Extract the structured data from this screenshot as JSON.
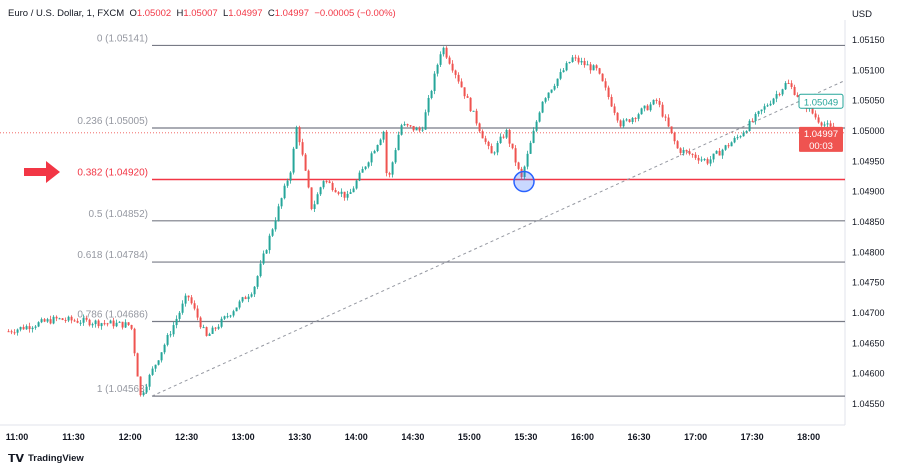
{
  "header": {
    "symbol": "Euro / U.S. Dollar, 1, FXCM",
    "o_label": "O",
    "o": "1.05002",
    "h_label": "H",
    "h": "1.05007",
    "l_label": "L",
    "l": "1.04997",
    "c_label": "C",
    "c": "1.04997",
    "change": "−0.00005 (−0.00%)"
  },
  "currency": "USD",
  "brand": "TradingView",
  "colors": {
    "up": "#26a69a",
    "down": "#ef5350",
    "fib_line": "#787b86",
    "fib_highlight": "#f23645",
    "arrow": "#f23645",
    "circle": "#2962ff"
  },
  "fib_levels": [
    {
      "ratio": 0,
      "price": 1.05141,
      "label": "0 (1.05141)"
    },
    {
      "ratio": 0.236,
      "price": 1.05005,
      "label": "0.236 (1.05005)"
    },
    {
      "ratio": 0.382,
      "price": 1.0492,
      "label": "0.382 (1.04920)",
      "highlight": true
    },
    {
      "ratio": 0.5,
      "price": 1.04852,
      "label": "0.5 (1.04852)"
    },
    {
      "ratio": 0.618,
      "price": 1.04784,
      "label": "0.618 (1.04784)"
    },
    {
      "ratio": 0.786,
      "price": 1.04686,
      "label": "0.786 (1.04686)"
    },
    {
      "ratio": 1,
      "price": 1.04563,
      "label": "1 (1.04563)"
    }
  ],
  "price_labels": {
    "high_marker": "1.05049",
    "last": "1.04997",
    "countdown": "00:03"
  },
  "chart_data": {
    "type": "candlestick",
    "yticks": [
      "1.05150",
      "1.05100",
      "1.05050",
      "1.05000",
      "1.04950",
      "1.04900",
      "1.04850",
      "1.04800",
      "1.04750",
      "1.04700",
      "1.04650",
      "1.04600",
      "1.04550"
    ],
    "xticks": [
      "11:00",
      "11:30",
      "12:00",
      "12:30",
      "13:00",
      "13:30",
      "14:00",
      "14:30",
      "15:00",
      "15:30",
      "16:00",
      "16:30",
      "17:00",
      "17:30",
      "18:00"
    ],
    "ylim": [
      1.0453,
      1.0518
    ],
    "approx_close": [
      [
        "10:55",
        1.0467
      ],
      [
        "11:20",
        1.0469
      ],
      [
        "12:00",
        1.0468
      ],
      [
        "12:05",
        1.04563
      ],
      [
        "12:30",
        1.0473
      ],
      [
        "12:40",
        1.0466
      ],
      [
        "13:05",
        1.0474
      ],
      [
        "13:25",
        1.0494
      ],
      [
        "13:28",
        1.0501
      ],
      [
        "13:36",
        1.0487
      ],
      [
        "13:42",
        1.0492
      ],
      [
        "13:55",
        1.0489
      ],
      [
        "14:14",
        1.05
      ],
      [
        "14:16",
        1.0491
      ],
      [
        "14:23",
        1.0501
      ],
      [
        "14:34",
        1.05
      ],
      [
        "14:45",
        1.05141
      ],
      [
        "14:53",
        1.0509
      ],
      [
        "15:11",
        1.0496
      ],
      [
        "15:19",
        1.05
      ],
      [
        "15:27",
        1.0492
      ],
      [
        "15:38",
        1.0505
      ],
      [
        "15:54",
        1.0512
      ],
      [
        "16:07",
        1.051
      ],
      [
        "16:20",
        1.0501
      ],
      [
        "16:39",
        1.0505
      ],
      [
        "16:50",
        1.0497
      ],
      [
        "17:06",
        1.0495
      ],
      [
        "17:22",
        1.0499
      ],
      [
        "17:48",
        1.0508
      ],
      [
        "18:04",
        1.0502
      ],
      [
        "18:14",
        1.04997
      ]
    ]
  }
}
